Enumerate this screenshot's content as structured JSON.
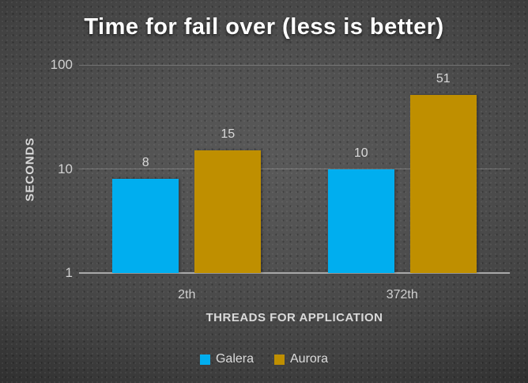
{
  "chart_data": {
    "type": "bar",
    "title": "Time for fail over (less is better)",
    "categories": [
      "2th",
      "372th"
    ],
    "series": [
      {
        "name": "Galera",
        "color": "#00AEEF",
        "values": [
          8,
          10
        ]
      },
      {
        "name": "Aurora",
        "color": "#BF8F00",
        "values": [
          15,
          51
        ]
      }
    ],
    "xlabel": "THREADS FOR APPLICATION",
    "ylabel": "SECONDS",
    "y_scale": "log",
    "ylim": [
      1,
      100
    ],
    "y_ticks": [
      1,
      10,
      100
    ],
    "grid": true,
    "data_labels": true,
    "legend_position": "bottom"
  }
}
